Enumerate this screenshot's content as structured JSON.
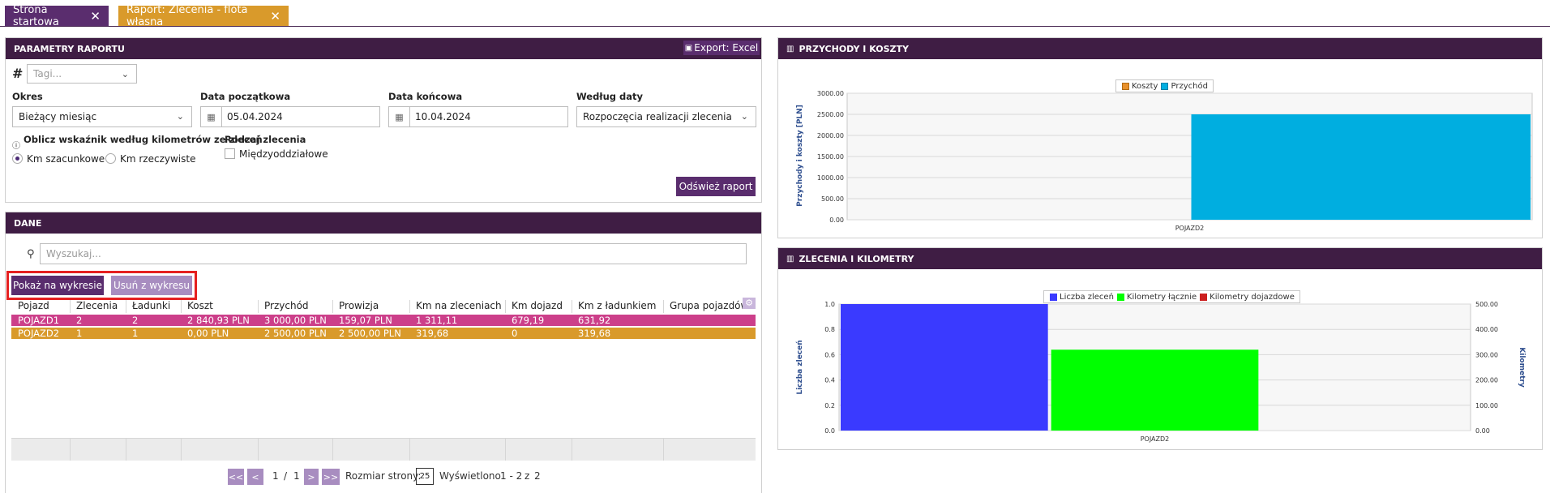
{
  "tabs": [
    {
      "label": "Strona startowa",
      "color": "#5a2d6e"
    },
    {
      "label": "Raport: Zlecenia - flota własna",
      "color": "#d99a2b"
    }
  ],
  "params": {
    "title": "PARAMETRY RAPORTU",
    "export_label": "Export: Excel",
    "tags_placeholder": "Tagi...",
    "okres_label": "Okres",
    "okres_value": "Bieżący miesiąc",
    "start_label": "Data początkowa",
    "start_value": "05.04.2024",
    "end_label": "Data końcowa",
    "end_value": "10.04.2024",
    "by_date_label": "Według daty",
    "by_date_value": "Rozpoczęcia realizacji zlecenia",
    "km_label": "Oblicz wskaźnik według kilometrów ze zleceń",
    "km_option1": "Km szacunkowe",
    "km_option2": "Km rzeczywiste",
    "order_type_label": "Rodzaj zlecenia",
    "order_type_option": "Międzyoddziałowe",
    "refresh_label": "Odśwież raport"
  },
  "data_panel": {
    "title": "DANE",
    "search_placeholder": "Wyszukaj...",
    "show_on_chart": "Pokaż na wykresie",
    "remove_from_chart": "Usuń z wykresu",
    "columns": [
      "Pojazd",
      "Zlecenia",
      "Ładunki",
      "Koszt",
      "Przychód",
      "Prowizja",
      "Km na zleceniach",
      "Km dojazd",
      "Km z ładunkiem",
      "Grupa pojazdów"
    ],
    "rows": [
      {
        "cells": [
          "POJAZD1",
          "2",
          "2",
          "2 840,93 PLN",
          "3 000,00 PLN",
          "159,07 PLN",
          "1 311,11",
          "679,19",
          "631,92",
          ""
        ],
        "color": "#cc3f8a"
      },
      {
        "cells": [
          "POJAZD2",
          "1",
          "1",
          "0,00 PLN",
          "2 500,00 PLN",
          "2 500,00 PLN",
          "319,68",
          "0",
          "319,68",
          ""
        ],
        "color": "#d99a2b"
      }
    ],
    "pager": {
      "first": "<<",
      "prev": "<",
      "page": "1",
      "sep": "/",
      "total": "1",
      "next": ">",
      "last": ">>",
      "page_size_label": "Rozmiar strony:",
      "page_size": "25",
      "shown_label": "Wyświetlono",
      "shown_range": "1 - 2",
      "shown_of": "z",
      "shown_total": "2"
    }
  },
  "chart1": {
    "title": "PRZYCHODY I KOSZTY",
    "chart_data": {
      "type": "bar",
      "categories": [
        "POJAZD2"
      ],
      "series": [
        {
          "name": "Koszty",
          "values": [
            0
          ],
          "color": "#e8902a"
        },
        {
          "name": "Przychód",
          "values": [
            2500
          ],
          "color": "#00aee0"
        }
      ],
      "ylabel": "Przychody i koszty [PLN]",
      "ylim": [
        0,
        3000
      ],
      "yticks": [
        "0.00",
        "500.00",
        "1000.00",
        "1500.00",
        "2000.00",
        "2500.00",
        "3000.00"
      ],
      "legend": "top-center",
      "grid": true
    }
  },
  "chart2": {
    "title": "ZLECENIA I KILOMETRY",
    "chart_data": {
      "type": "bar",
      "categories": [
        "POJAZD2"
      ],
      "series": [
        {
          "name": "Liczba zleceń",
          "values": [
            1
          ],
          "color": "#3a3aff",
          "axis": "left"
        },
        {
          "name": "Kilometry łącznie",
          "values": [
            319.68
          ],
          "color": "#00ff00",
          "axis": "right"
        },
        {
          "name": "Kilometry dojazdowe",
          "values": [
            0
          ],
          "color": "#cc1f1f",
          "axis": "right"
        }
      ],
      "ylabel": "Liczba zleceń",
      "ylabel_right": "Kilometry",
      "ylim": [
        0,
        1
      ],
      "ylim_right": [
        0,
        500
      ],
      "yticks": [
        "0.0",
        "0.2",
        "0.4",
        "0.6",
        "0.8",
        "1.0"
      ],
      "yticks_right": [
        "0.00",
        "100.00",
        "200.00",
        "300.00",
        "400.00",
        "500.00"
      ],
      "legend": "top-center",
      "grid": true
    }
  }
}
